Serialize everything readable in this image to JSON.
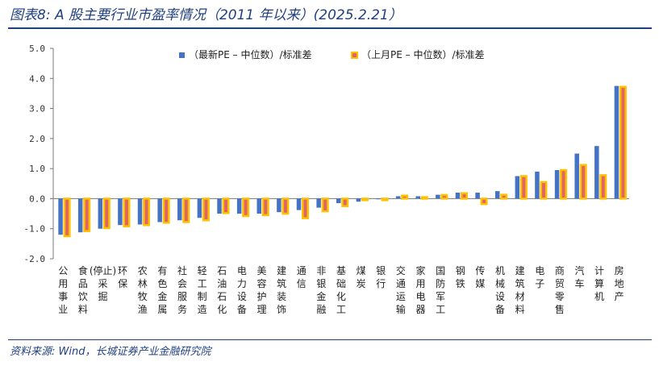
{
  "header": {
    "title": "图表8:  A 股主要行业市盈率情况（2011 年以来）(2025.2.21）"
  },
  "footer": {
    "source": "资料来源:  Wind，长城证券产业金融研究院"
  },
  "colors": {
    "title": "#1f3f80",
    "series1": "#4472c4",
    "series2_fill": "#e06666",
    "series2_border": "#ffc000"
  },
  "chart_data": {
    "type": "bar",
    "ylim": [
      -2.0,
      5.0
    ],
    "yticks": [
      "5.0",
      "4.0",
      "3.0",
      "2.0",
      "1.0",
      "0.0",
      "-1.0",
      "-2.0"
    ],
    "ytick_values": [
      5,
      4,
      3,
      2,
      1,
      0,
      -1,
      -2
    ],
    "legend_position": "top-right",
    "categories": [
      "公用事业",
      "食品饮料",
      "(停止)采掘",
      "环保",
      "农林牧渔",
      "有色金属",
      "社会服务",
      "轻工制造",
      "石油石化",
      "电力设备",
      "美容护理",
      "建筑装饰",
      "通信",
      "非银金融",
      "基础化工",
      "煤炭",
      "银行",
      "交通运输",
      "家用电器",
      "国防军工",
      "钢铁",
      "传媒",
      "机械设备",
      "建筑材料",
      "电子",
      "商贸零售",
      "汽车",
      "计算机",
      "房地产"
    ],
    "series": [
      {
        "name": "（最新PE – 中位数）/标准差",
        "values": [
          -1.2,
          -1.12,
          -1.0,
          -0.88,
          -0.86,
          -0.78,
          -0.72,
          -0.64,
          -0.5,
          -0.5,
          -0.5,
          -0.45,
          -0.38,
          -0.3,
          -0.15,
          -0.1,
          -0.02,
          0.08,
          0.08,
          0.13,
          0.2,
          0.2,
          0.25,
          0.75,
          0.9,
          0.95,
          1.5,
          1.75,
          3.75
        ]
      },
      {
        "name": "（上月PE – 中位数）/标准差",
        "values": [
          -1.25,
          -1.08,
          -0.98,
          -0.92,
          -0.88,
          -0.8,
          -0.78,
          -0.72,
          -0.48,
          -0.58,
          -0.55,
          -0.5,
          -0.65,
          -0.42,
          -0.25,
          -0.05,
          -0.05,
          0.1,
          0.05,
          0.12,
          0.18,
          -0.18,
          0.13,
          0.75,
          0.55,
          0.95,
          1.12,
          0.78,
          3.72
        ]
      }
    ]
  }
}
